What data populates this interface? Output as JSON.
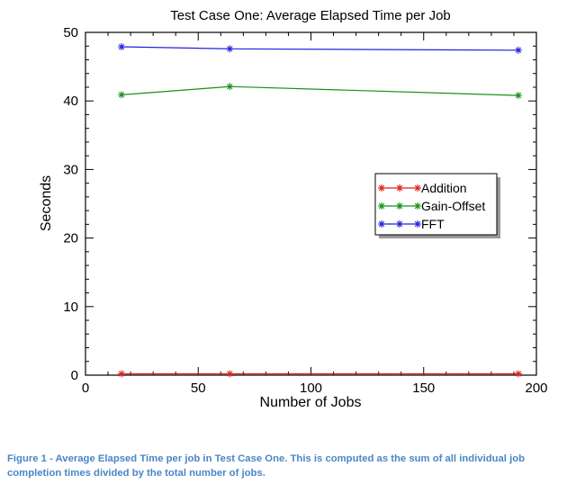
{
  "chart_data": {
    "type": "line",
    "title": "Test Case One: Average Elapsed Time per Job",
    "xlabel": "Number of Jobs",
    "ylabel": "Seconds",
    "xlim": [
      0,
      200
    ],
    "ylim": [
      0,
      50
    ],
    "xticks": [
      0,
      50,
      100,
      150,
      200
    ],
    "yticks": [
      0,
      10,
      20,
      30,
      40,
      50
    ],
    "grid": false,
    "legend_position": "right",
    "x": [
      16,
      64,
      192
    ],
    "series": [
      {
        "name": "Addition",
        "color": "#e02020",
        "marker": "asterisk",
        "values": [
          0.2,
          0.2,
          0.2
        ]
      },
      {
        "name": "Gain-Offset",
        "color": "#1a8f1a",
        "marker": "asterisk",
        "values": [
          40.9,
          42.1,
          40.8
        ]
      },
      {
        "name": "FFT",
        "color": "#2222dd",
        "marker": "asterisk",
        "values": [
          47.9,
          47.6,
          47.4
        ]
      }
    ]
  },
  "caption": "Figure 1 - Average Elapsed Time per job in Test Case One. This is computed as the sum of all individual job completion times divided by the total number of jobs."
}
